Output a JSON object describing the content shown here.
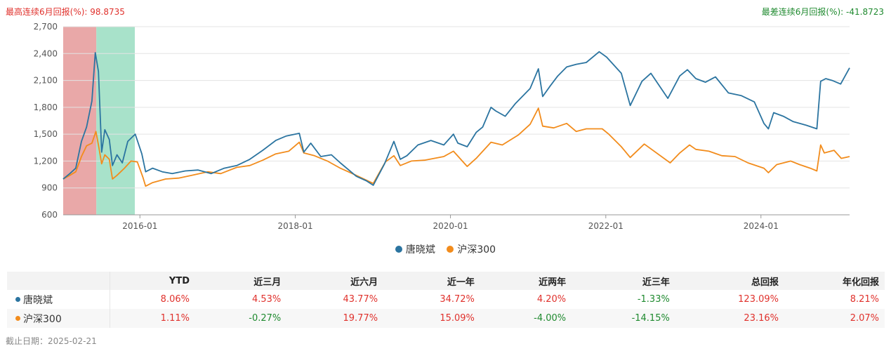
{
  "header": {
    "best_label": "最高连续6月回报(%):",
    "best_value": "98.8735",
    "worst_label": "最差连续6月回报(%):",
    "worst_value": "-41.8723"
  },
  "chart_data": {
    "type": "line",
    "x_range": [
      "2015-01-05",
      "2025-02-21"
    ],
    "xticks": [
      "2016-01",
      "2018-01",
      "2020-01",
      "2022-01",
      "2024-01"
    ],
    "ylim": [
      600,
      2700
    ],
    "yticks": [
      "600",
      "900",
      "1,200",
      "1,500",
      "1,800",
      "2,100",
      "2,400",
      "2,700"
    ],
    "grid": "horizontal",
    "legend_position": "bottom-center",
    "highlights": [
      {
        "kind": "best-6m",
        "color": "#e8a3a3",
        "from": "2015-01-05",
        "to": "2015-06-10"
      },
      {
        "kind": "worst-6m",
        "color": "#a3e0c7",
        "from": "2015-06-10",
        "to": "2015-12-08"
      }
    ],
    "series": [
      {
        "name": "唐晓斌",
        "color": "#2b74a0",
        "points": [
          [
            "2015-01-05",
            1000
          ],
          [
            "2015-02-05",
            1060
          ],
          [
            "2015-03-05",
            1120
          ],
          [
            "2015-04-01",
            1420
          ],
          [
            "2015-04-25",
            1580
          ],
          [
            "2015-05-20",
            1870
          ],
          [
            "2015-06-05",
            2410
          ],
          [
            "2015-06-20",
            2200
          ],
          [
            "2015-07-05",
            1300
          ],
          [
            "2015-07-20",
            1550
          ],
          [
            "2015-08-10",
            1440
          ],
          [
            "2015-08-25",
            1150
          ],
          [
            "2015-09-15",
            1270
          ],
          [
            "2015-10-10",
            1180
          ],
          [
            "2015-11-05",
            1420
          ],
          [
            "2015-12-10",
            1500
          ],
          [
            "2016-01-10",
            1280
          ],
          [
            "2016-01-28",
            1080
          ],
          [
            "2016-03-01",
            1120
          ],
          [
            "2016-04-15",
            1080
          ],
          [
            "2016-06-01",
            1060
          ],
          [
            "2016-08-01",
            1090
          ],
          [
            "2016-10-01",
            1100
          ],
          [
            "2016-12-01",
            1060
          ],
          [
            "2017-02-01",
            1120
          ],
          [
            "2017-04-01",
            1150
          ],
          [
            "2017-06-01",
            1220
          ],
          [
            "2017-08-01",
            1320
          ],
          [
            "2017-10-01",
            1430
          ],
          [
            "2017-11-20",
            1480
          ],
          [
            "2018-01-20",
            1510
          ],
          [
            "2018-02-10",
            1300
          ],
          [
            "2018-03-15",
            1400
          ],
          [
            "2018-05-01",
            1250
          ],
          [
            "2018-06-20",
            1270
          ],
          [
            "2018-08-01",
            1180
          ],
          [
            "2018-10-15",
            1030
          ],
          [
            "2018-12-01",
            980
          ],
          [
            "2019-01-03",
            930
          ],
          [
            "2019-02-25",
            1170
          ],
          [
            "2019-04-10",
            1420
          ],
          [
            "2019-05-10",
            1220
          ],
          [
            "2019-06-10",
            1260
          ],
          [
            "2019-08-01",
            1380
          ],
          [
            "2019-10-01",
            1430
          ],
          [
            "2019-12-01",
            1380
          ],
          [
            "2020-01-15",
            1500
          ],
          [
            "2020-02-05",
            1400
          ],
          [
            "2020-03-20",
            1360
          ],
          [
            "2020-05-01",
            1520
          ],
          [
            "2020-06-01",
            1580
          ],
          [
            "2020-07-10",
            1800
          ],
          [
            "2020-08-01",
            1760
          ],
          [
            "2020-09-15",
            1700
          ],
          [
            "2020-11-01",
            1840
          ],
          [
            "2021-01-10",
            2010
          ],
          [
            "2021-02-18",
            2230
          ],
          [
            "2021-03-10",
            1920
          ],
          [
            "2021-04-15",
            2040
          ],
          [
            "2021-05-20",
            2150
          ],
          [
            "2021-07-01",
            2250
          ],
          [
            "2021-08-15",
            2280
          ],
          [
            "2021-10-01",
            2300
          ],
          [
            "2021-12-01",
            2420
          ],
          [
            "2022-01-05",
            2360
          ],
          [
            "2022-03-15",
            2180
          ],
          [
            "2022-04-26",
            1820
          ],
          [
            "2022-06-20",
            2090
          ],
          [
            "2022-08-01",
            2180
          ],
          [
            "2022-10-20",
            1900
          ],
          [
            "2022-12-15",
            2150
          ],
          [
            "2023-01-20",
            2220
          ],
          [
            "2023-03-01",
            2120
          ],
          [
            "2023-04-15",
            2080
          ],
          [
            "2023-06-01",
            2140
          ],
          [
            "2023-08-01",
            1960
          ],
          [
            "2023-10-01",
            1930
          ],
          [
            "2023-12-01",
            1860
          ],
          [
            "2024-01-15",
            1620
          ],
          [
            "2024-02-05",
            1560
          ],
          [
            "2024-03-01",
            1740
          ],
          [
            "2024-04-15",
            1700
          ],
          [
            "2024-06-01",
            1640
          ],
          [
            "2024-08-01",
            1600
          ],
          [
            "2024-09-20",
            1560
          ],
          [
            "2024-10-08",
            2090
          ],
          [
            "2024-11-01",
            2120
          ],
          [
            "2024-12-01",
            2100
          ],
          [
            "2025-01-10",
            2060
          ],
          [
            "2025-02-21",
            2240
          ]
        ]
      },
      {
        "name": "沪深300",
        "color": "#f28c1c",
        "points": [
          [
            "2015-01-05",
            1000
          ],
          [
            "2015-02-05",
            1040
          ],
          [
            "2015-03-05",
            1080
          ],
          [
            "2015-04-01",
            1250
          ],
          [
            "2015-04-25",
            1370
          ],
          [
            "2015-05-20",
            1400
          ],
          [
            "2015-06-08",
            1530
          ],
          [
            "2015-06-20",
            1380
          ],
          [
            "2015-07-05",
            1170
          ],
          [
            "2015-07-20",
            1270
          ],
          [
            "2015-08-10",
            1220
          ],
          [
            "2015-08-25",
            1000
          ],
          [
            "2015-09-15",
            1040
          ],
          [
            "2015-10-20",
            1120
          ],
          [
            "2015-11-20",
            1200
          ],
          [
            "2015-12-20",
            1190
          ],
          [
            "2016-01-15",
            1020
          ],
          [
            "2016-01-28",
            920
          ],
          [
            "2016-03-01",
            960
          ],
          [
            "2016-05-01",
            1000
          ],
          [
            "2016-07-01",
            1010
          ],
          [
            "2016-09-01",
            1040
          ],
          [
            "2016-11-15",
            1080
          ],
          [
            "2017-01-15",
            1060
          ],
          [
            "2017-04-01",
            1130
          ],
          [
            "2017-06-01",
            1150
          ],
          [
            "2017-08-01",
            1210
          ],
          [
            "2017-10-01",
            1280
          ],
          [
            "2017-12-01",
            1310
          ],
          [
            "2018-01-20",
            1410
          ],
          [
            "2018-02-10",
            1290
          ],
          [
            "2018-04-01",
            1260
          ],
          [
            "2018-06-01",
            1200
          ],
          [
            "2018-08-01",
            1120
          ],
          [
            "2018-10-15",
            1040
          ],
          [
            "2019-01-03",
            950
          ],
          [
            "2019-03-01",
            1190
          ],
          [
            "2019-04-10",
            1260
          ],
          [
            "2019-05-10",
            1150
          ],
          [
            "2019-07-01",
            1200
          ],
          [
            "2019-09-01",
            1210
          ],
          [
            "2019-12-01",
            1250
          ],
          [
            "2020-01-15",
            1310
          ],
          [
            "2020-03-20",
            1140
          ],
          [
            "2020-05-01",
            1230
          ],
          [
            "2020-07-10",
            1410
          ],
          [
            "2020-09-01",
            1380
          ],
          [
            "2020-11-15",
            1490
          ],
          [
            "2021-01-10",
            1610
          ],
          [
            "2021-02-18",
            1790
          ],
          [
            "2021-03-10",
            1590
          ],
          [
            "2021-05-01",
            1570
          ],
          [
            "2021-07-01",
            1620
          ],
          [
            "2021-08-15",
            1530
          ],
          [
            "2021-10-01",
            1560
          ],
          [
            "2021-12-15",
            1560
          ],
          [
            "2022-01-15",
            1500
          ],
          [
            "2022-03-15",
            1360
          ],
          [
            "2022-04-26",
            1240
          ],
          [
            "2022-07-01",
            1390
          ],
          [
            "2022-10-31",
            1180
          ],
          [
            "2022-12-15",
            1290
          ],
          [
            "2023-01-30",
            1380
          ],
          [
            "2023-03-01",
            1330
          ],
          [
            "2023-05-01",
            1310
          ],
          [
            "2023-07-01",
            1260
          ],
          [
            "2023-09-01",
            1250
          ],
          [
            "2023-11-01",
            1180
          ],
          [
            "2024-01-15",
            1120
          ],
          [
            "2024-02-05",
            1070
          ],
          [
            "2024-03-15",
            1160
          ],
          [
            "2024-05-20",
            1200
          ],
          [
            "2024-07-01",
            1160
          ],
          [
            "2024-08-20",
            1120
          ],
          [
            "2024-09-20",
            1090
          ],
          [
            "2024-10-08",
            1380
          ],
          [
            "2024-10-25",
            1290
          ],
          [
            "2024-12-10",
            1320
          ],
          [
            "2025-01-13",
            1230
          ],
          [
            "2025-02-21",
            1250
          ]
        ]
      }
    ]
  },
  "table": {
    "headers": [
      "",
      "YTD",
      "近三月",
      "近六月",
      "近一年",
      "近两年",
      "近三年",
      "总回报",
      "年化回报"
    ],
    "rows": [
      {
        "name": "唐晓斌",
        "color": "#2b74a0",
        "values": [
          "8.06%",
          "4.53%",
          "43.77%",
          "34.72%",
          "4.20%",
          "-1.33%",
          "123.09%",
          "8.21%"
        ]
      },
      {
        "name": "沪深300",
        "color": "#f28c1c",
        "values": [
          "1.11%",
          "-0.27%",
          "19.77%",
          "15.09%",
          "-4.00%",
          "-14.15%",
          "23.16%",
          "2.07%"
        ]
      }
    ]
  },
  "footer": {
    "label": "截止日期：",
    "date": "2025-02-21"
  }
}
